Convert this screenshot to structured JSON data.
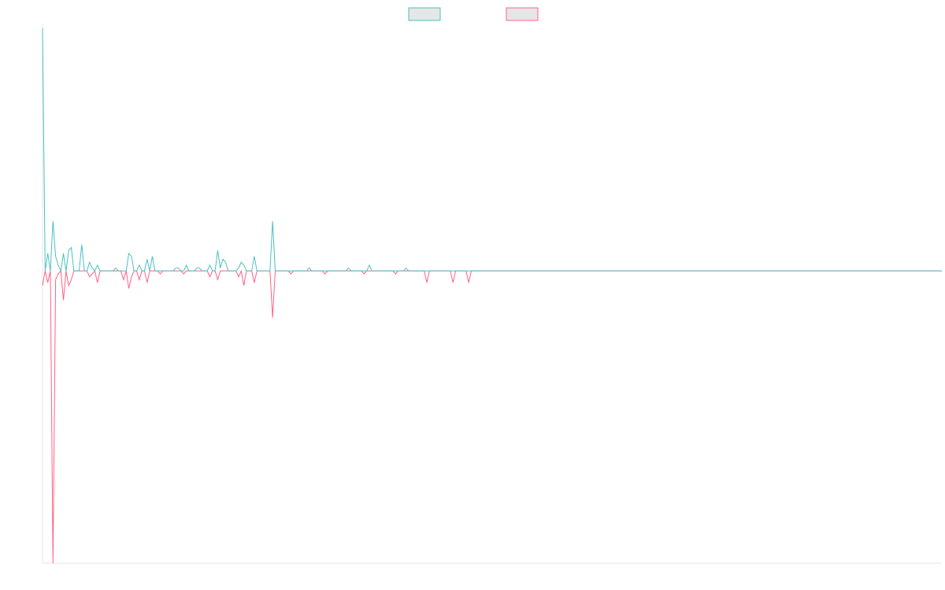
{
  "chart_data": {
    "type": "line",
    "title": "",
    "xlabel": "",
    "ylabel": "",
    "grid": false,
    "legend": "top-center",
    "ylim": [
      -1,
      0.83
    ],
    "series": [
      {
        "color": "#4bc0c0",
        "fill": "#e6e6e6",
        "values": [
          0.83,
          0,
          0.06,
          0,
          0.17,
          0.05,
          0.02,
          0,
          0.06,
          0,
          0.07,
          0.08,
          0,
          0,
          0,
          0.09,
          0,
          0,
          0.03,
          0.01,
          0,
          0.02,
          0,
          0,
          0,
          0,
          0,
          0,
          0.01,
          0,
          0,
          0,
          0,
          0.06,
          0.05,
          0,
          0,
          0.02,
          0,
          0,
          0.04,
          0,
          0.05,
          0,
          0,
          0,
          0,
          0,
          0,
          0,
          0,
          0.01,
          0.01,
          0,
          0,
          0.02,
          0,
          0,
          0,
          0.01,
          0.01,
          0,
          0,
          0,
          0.02,
          0,
          0,
          0.07,
          0.01,
          0.04,
          0.03,
          0,
          0,
          0,
          0,
          0.01,
          0.03,
          0.02,
          0,
          0,
          0,
          0.05,
          0,
          0,
          0,
          0,
          0,
          0,
          0.17,
          0,
          0,
          0,
          0,
          0,
          0,
          0,
          0,
          0,
          0,
          0,
          0,
          0,
          0.01,
          0,
          0,
          0,
          0,
          0,
          0,
          0,
          0,
          0,
          0,
          0,
          0,
          0,
          0,
          0.01,
          0,
          0,
          0,
          0,
          0,
          0,
          0,
          0.02,
          0,
          0,
          0,
          0,
          0,
          0,
          0,
          0,
          0,
          0,
          0,
          0,
          0,
          0.01,
          0,
          0,
          0,
          0,
          0,
          0,
          0,
          0,
          0,
          0,
          0,
          0,
          0,
          0,
          0,
          0,
          0,
          0,
          0,
          0,
          0,
          0,
          0,
          0,
          0,
          0,
          0,
          0,
          0,
          0,
          0,
          0,
          0,
          0,
          0,
          0,
          0,
          0,
          0,
          0,
          0,
          0,
          0,
          0,
          0,
          0,
          0,
          0,
          0,
          0,
          0,
          0,
          0,
          0,
          0,
          0,
          0,
          0,
          0,
          0,
          0,
          0,
          0,
          0,
          0,
          0,
          0,
          0,
          0,
          0,
          0,
          0,
          0,
          0,
          0,
          0,
          0,
          0,
          0,
          0,
          0,
          0,
          0,
          0,
          0,
          0,
          0,
          0,
          0,
          0,
          0,
          0,
          0,
          0,
          0,
          0,
          0,
          0,
          0,
          0,
          0,
          0,
          0,
          0,
          0,
          0,
          0,
          0,
          0,
          0,
          0,
          0,
          0,
          0,
          0,
          0,
          0,
          0,
          0,
          0,
          0,
          0,
          0,
          0,
          0,
          0,
          0,
          0,
          0,
          0,
          0,
          0,
          0,
          0,
          0,
          0,
          0,
          0,
          0,
          0,
          0,
          0,
          0,
          0,
          0,
          0,
          0,
          0,
          0,
          0,
          0,
          0,
          0,
          0,
          0,
          0,
          0,
          0,
          0,
          0,
          0,
          0,
          0,
          0,
          0,
          0,
          0,
          0,
          0,
          0,
          0,
          0,
          0,
          0,
          0,
          0,
          0,
          0,
          0,
          0,
          0,
          0,
          0,
          0,
          0,
          0,
          0,
          0,
          0,
          0,
          0,
          0,
          0,
          0,
          0,
          0,
          0,
          0,
          0,
          0,
          0,
          0,
          0,
          0,
          0,
          0,
          0,
          0,
          0,
          0,
          0,
          0,
          0,
          0,
          0,
          0,
          0,
          0,
          0,
          0,
          0,
          0,
          0,
          0,
          0,
          0,
          0,
          0,
          0,
          0,
          0,
          0,
          0,
          0,
          0,
          0,
          0,
          0,
          0,
          0,
          0,
          0,
          0,
          0,
          0,
          0,
          0,
          0,
          0,
          0,
          0,
          0,
          0,
          0,
          0,
          0,
          0,
          0,
          0,
          0,
          0,
          0
        ]
      },
      {
        "color": "#ff6384",
        "fill": "#e6e6e6",
        "values": [
          -0.05,
          0,
          -0.04,
          0,
          -1,
          -0.03,
          -0.01,
          0,
          -0.1,
          0,
          -0.05,
          -0.03,
          0,
          0,
          0,
          0,
          0,
          0,
          -0.02,
          -0.01,
          0,
          -0.04,
          0,
          0,
          0,
          0,
          0,
          0,
          0,
          0,
          0,
          -0.03,
          0,
          -0.06,
          -0.02,
          0,
          0,
          -0.03,
          0,
          0,
          -0.04,
          0,
          0,
          0,
          0,
          -0.01,
          0,
          0,
          0,
          0,
          0,
          0,
          0,
          0,
          -0.01,
          0,
          0,
          0,
          0,
          0,
          0,
          0,
          0,
          0,
          -0.02,
          0,
          0,
          -0.03,
          0,
          0,
          0,
          0,
          0,
          0,
          0,
          -0.02,
          0,
          -0.05,
          0,
          0,
          0,
          -0.04,
          0,
          0,
          0,
          0,
          0,
          0,
          -0.16,
          0,
          0,
          0,
          0,
          0,
          0,
          -0.01,
          0,
          0,
          0,
          0,
          0,
          0,
          0,
          0,
          0,
          0,
          0,
          0,
          -0.01,
          0,
          0,
          0,
          0,
          0,
          0,
          0,
          0,
          0,
          0,
          0,
          0,
          0,
          0,
          -0.01,
          0,
          0,
          0,
          0,
          0,
          0,
          0,
          0,
          0,
          0,
          0,
          -0.01,
          0,
          0,
          0,
          0,
          0,
          0,
          0,
          0,
          0,
          0,
          0,
          -0.04,
          0,
          0,
          0,
          0,
          0,
          0,
          0,
          0,
          0,
          -0.04,
          0,
          0,
          0,
          0,
          0,
          -0.04,
          0,
          0,
          0,
          0,
          0,
          0,
          0,
          0,
          0,
          0,
          0,
          0,
          0,
          0,
          0,
          0,
          0,
          0,
          0,
          0,
          0,
          0,
          0,
          0,
          0,
          0,
          0,
          0,
          0,
          0,
          0,
          0,
          0,
          0,
          0,
          0,
          0,
          0,
          0,
          0,
          0,
          0,
          0,
          0,
          0,
          0,
          0,
          0,
          0,
          0,
          0,
          0,
          0,
          0,
          0,
          0,
          0,
          0,
          0,
          0,
          0,
          0,
          0,
          0,
          0,
          0,
          0,
          0,
          0,
          0,
          0,
          0,
          0,
          0,
          0,
          0,
          0,
          0,
          0,
          0,
          0,
          0,
          0,
          0,
          0,
          0,
          0,
          0,
          0,
          0,
          0,
          0,
          0,
          0,
          0,
          0,
          0,
          0,
          0,
          0,
          0,
          0,
          0,
          0,
          0,
          0,
          0,
          0,
          0,
          0,
          0,
          0,
          0,
          0,
          0,
          0,
          0,
          0,
          0,
          0,
          0,
          0,
          0,
          0,
          0,
          0,
          0,
          0,
          0,
          0,
          0,
          0,
          0,
          0,
          0,
          0,
          0,
          0,
          0,
          0,
          0,
          0,
          0,
          0,
          0,
          0,
          0,
          0,
          0,
          0,
          0,
          0,
          0,
          0,
          0,
          0,
          0,
          0,
          0,
          0,
          0,
          0,
          0,
          0,
          0,
          0,
          0,
          0,
          0,
          0,
          0,
          0,
          0,
          0,
          0,
          0,
          0,
          0,
          0,
          0,
          0,
          0,
          0,
          0,
          0,
          0,
          0,
          0,
          0,
          0,
          0,
          0,
          0,
          0,
          0,
          0,
          0,
          0,
          0,
          0,
          0,
          0,
          0,
          0,
          0,
          0,
          0,
          0,
          0,
          0,
          0,
          0,
          0,
          0,
          0,
          0,
          0,
          0,
          0,
          0,
          0,
          0,
          0,
          0,
          0,
          0,
          0,
          0,
          0,
          0,
          0,
          0,
          0,
          0,
          0,
          0,
          0,
          0,
          0
        ]
      }
    ]
  }
}
